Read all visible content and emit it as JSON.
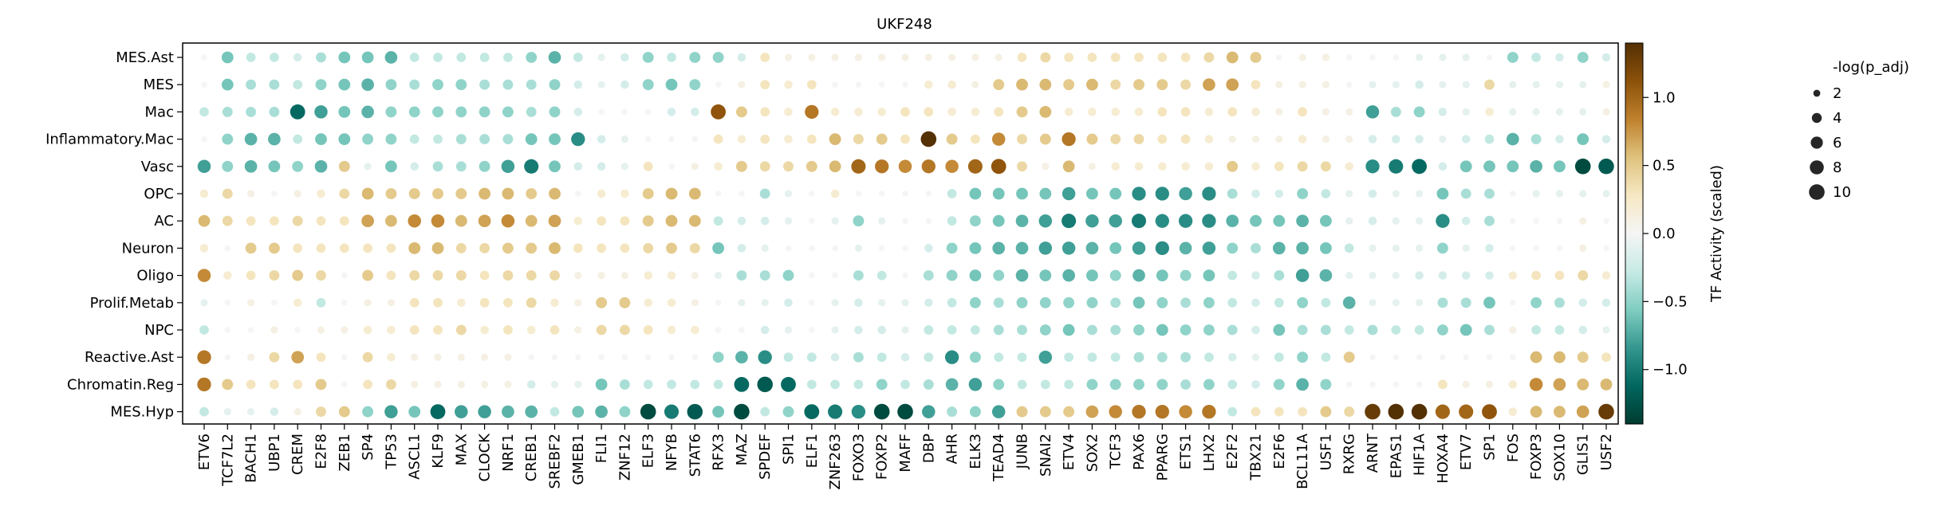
{
  "chart_data": {
    "type": "dotplot",
    "title": "UKF248",
    "xlabel": "",
    "ylabel": "",
    "cell_types": [
      "MES.Ast",
      "MES",
      "Mac",
      "Inflammatory.Mac",
      "Vasc",
      "OPC",
      "AC",
      "Neuron",
      "Oligo",
      "Prolif.Metab",
      "NPC",
      "Reactive.Ast",
      "Chromatin.Reg",
      "MES.Hyp"
    ],
    "tfs": [
      "ETV6",
      "TCF7L2",
      "BACH1",
      "UBP1",
      "CREM",
      "E2F8",
      "ZEB1",
      "SP4",
      "TP53",
      "ASCL1",
      "KLF9",
      "MAX",
      "CLOCK",
      "NRF1",
      "CREB1",
      "SREBF2",
      "GMEB1",
      "FLI1",
      "ZNF12",
      "ELF3",
      "NFYB",
      "STAT6",
      "RFX3",
      "MAZ",
      "SPDEF",
      "SPI1",
      "ELF1",
      "ZNF263",
      "FOXO3",
      "FOXP2",
      "MAFF",
      "DBP",
      "AHR",
      "ELK3",
      "TEAD4",
      "JUNB",
      "SNAI2",
      "ETV4",
      "SOX2",
      "TCF3",
      "PAX6",
      "PPARG",
      "ETS1",
      "LHX2",
      "E2F2",
      "TBX21",
      "E2F6",
      "BCL11A",
      "USF1",
      "RXRG",
      "ARNT",
      "EPAS1",
      "HIF1A",
      "HOXA4",
      "ETV7",
      "SP1",
      "FOS",
      "FOXP3",
      "SOX10",
      "GLIS1",
      "USF2"
    ],
    "activity": [
      [
        0,
        -0.6,
        -0.3,
        -0.3,
        -0.2,
        -0.4,
        -0.6,
        -0.6,
        -0.7,
        -0.3,
        -0.3,
        -0.3,
        -0.3,
        -0.3,
        -0.5,
        -0.7,
        -0.3,
        -0.1,
        -0.2,
        -0.5,
        -0.3,
        -0.5,
        -0.5,
        -0.2,
        0.3,
        0.1,
        0.1,
        0.1,
        0.1,
        0.1,
        0.1,
        0.1,
        0.1,
        0.1,
        0.1,
        0.3,
        0.4,
        0.3,
        0.3,
        0.3,
        0.3,
        0.3,
        0.3,
        0.4,
        0.6,
        0.5,
        0,
        0.1,
        0.1,
        0,
        0,
        0,
        -0.1,
        -0.1,
        -0.1,
        0,
        -0.5,
        -0.3,
        -0.2,
        -0.5,
        -0.2
      ],
      [
        0,
        -0.6,
        -0.4,
        -0.4,
        -0.3,
        -0.5,
        -0.6,
        -0.7,
        -0.5,
        -0.4,
        -0.5,
        -0.5,
        -0.4,
        -0.4,
        -0.4,
        -0.5,
        -0.2,
        -0.1,
        -0.2,
        -0.5,
        -0.6,
        -0.5,
        0,
        0.1,
        0.3,
        0.2,
        0.3,
        0,
        0,
        0,
        0,
        0.2,
        0.2,
        0.1,
        0.5,
        0.6,
        0.6,
        0.5,
        0.6,
        0.4,
        0.5,
        0.5,
        0.4,
        0.7,
        0.7,
        0.3,
        0.1,
        0.1,
        0.1,
        0,
        -0.1,
        -0.1,
        -0.2,
        -0.1,
        -0.1,
        0.4,
        -0.1,
        -0.1,
        -0.1,
        -0.1,
        0.1
      ],
      [
        -0.3,
        -0.4,
        -0.4,
        -0.4,
        -1.1,
        -0.8,
        -0.6,
        -0.7,
        -0.5,
        -0.5,
        -0.5,
        -0.5,
        -0.5,
        -0.5,
        -0.4,
        -0.5,
        -0.2,
        0,
        0,
        0,
        -0.2,
        -0.2,
        1.1,
        0.5,
        0.3,
        0.2,
        0.9,
        0.2,
        0.2,
        0.2,
        0.3,
        0.3,
        0.2,
        0.2,
        0.3,
        0.5,
        0.6,
        0.2,
        0.2,
        0.2,
        0.2,
        0.3,
        0.3,
        0.2,
        0.3,
        0.2,
        0.1,
        0.3,
        0.1,
        0.1,
        -0.8,
        -0.4,
        -0.5,
        -0.2,
        -0.1,
        0.2,
        -0.1,
        -0.1,
        -0.1,
        -0.1,
        0.1
      ],
      [
        0,
        -0.5,
        -0.7,
        -0.7,
        -0.3,
        -0.6,
        -0.6,
        -0.5,
        -0.5,
        -0.3,
        -0.3,
        -0.4,
        -0.4,
        -0.4,
        -0.6,
        -0.6,
        -0.9,
        -0.2,
        -0.1,
        0,
        0,
        0,
        0.3,
        0.2,
        0.3,
        0.2,
        0.3,
        0.6,
        0.4,
        0.5,
        0.3,
        1.4,
        0.5,
        0.3,
        0.8,
        0.4,
        0.5,
        0.9,
        0.5,
        0.4,
        0.4,
        0.3,
        0.3,
        0.2,
        0.1,
        0.1,
        0.1,
        0.2,
        0.1,
        0.1,
        -0.2,
        -0.2,
        -0.2,
        -0.1,
        -0.2,
        -0.3,
        -0.7,
        -0.4,
        -0.2,
        -0.6,
        -0.2
      ],
      [
        -0.8,
        -0.5,
        -0.7,
        -0.6,
        -0.5,
        -0.7,
        0.5,
        -0.1,
        -0.6,
        -0.2,
        -0.4,
        -0.4,
        -0.5,
        -0.8,
        -1.0,
        -0.6,
        -0.2,
        -0.2,
        -0.1,
        0.3,
        0,
        0.1,
        0.2,
        0.5,
        0.4,
        0.4,
        0.5,
        0.6,
        1.0,
        0.9,
        0.8,
        0.9,
        0.8,
        1.0,
        1.1,
        0.4,
        0.1,
        0.6,
        0.1,
        0.2,
        0.2,
        0.2,
        0.2,
        0.2,
        0.5,
        0.2,
        0.3,
        0.4,
        0.4,
        0.2,
        -0.9,
        -1.0,
        -1.1,
        -0.2,
        -0.6,
        -0.6,
        -0.6,
        -0.7,
        -0.6,
        -1.3,
        -1.2
      ],
      [
        0.2,
        0.4,
        0.1,
        0,
        0.1,
        0.2,
        0.4,
        0.6,
        0.5,
        0.5,
        0.5,
        0.5,
        0.6,
        0.6,
        0.5,
        0.6,
        0,
        0.2,
        0.2,
        0.5,
        0.6,
        0.6,
        0,
        0,
        -0.4,
        -0.1,
        0,
        0.2,
        0,
        0,
        0,
        0,
        -0.3,
        -0.6,
        -0.6,
        -0.6,
        -0.6,
        -0.8,
        -0.6,
        -0.6,
        -0.9,
        -0.9,
        -0.8,
        -0.9,
        -0.4,
        -0.2,
        -0.2,
        -0.5,
        -0.3,
        -0.1,
        -0.2,
        -0.1,
        -0.1,
        -0.6,
        -0.4,
        -0.4,
        0,
        -0.1,
        -0.1,
        -0.1,
        -0.1
      ],
      [
        0.6,
        0.4,
        0.3,
        0.3,
        0.4,
        0.3,
        0.3,
        0.7,
        0.6,
        0.8,
        0.8,
        0.6,
        0.7,
        0.8,
        0.6,
        0.7,
        0.2,
        0.3,
        0.3,
        0.5,
        0.6,
        0.6,
        -0.3,
        -0.2,
        -0.2,
        -0.1,
        0,
        -0.1,
        -0.5,
        -0.1,
        0,
        0,
        -0.3,
        -0.5,
        -0.6,
        -0.7,
        -0.8,
        -1.0,
        -0.8,
        -0.8,
        -1.0,
        -0.9,
        -0.9,
        -0.9,
        -0.7,
        -0.6,
        -0.6,
        -0.7,
        -0.6,
        -0.1,
        -0.2,
        -0.1,
        -0.1,
        -0.9,
        -0.2,
        -0.4,
        0,
        0,
        0,
        0.1,
        0
      ],
      [
        0.2,
        0,
        0.5,
        0.5,
        0.3,
        0.3,
        0.3,
        0.3,
        0.3,
        0.6,
        0.6,
        0.4,
        0.4,
        0.5,
        0.5,
        0.6,
        0.3,
        0.3,
        0.3,
        0.4,
        0.5,
        0.4,
        -0.6,
        -0.2,
        -0.1,
        0,
        0,
        0,
        -0.1,
        0,
        0,
        -0.2,
        -0.5,
        -0.6,
        -0.7,
        -0.7,
        -0.8,
        -0.8,
        -0.7,
        -0.6,
        -0.8,
        -0.9,
        -0.7,
        -0.8,
        -0.5,
        -0.4,
        -0.7,
        -0.7,
        -0.6,
        -0.3,
        -0.1,
        -0.1,
        -0.1,
        -0.5,
        -0.1,
        -0.2,
        0,
        0,
        0,
        0.1,
        0
      ],
      [
        0.8,
        0.2,
        0.3,
        0.4,
        0.5,
        0.4,
        0,
        0.5,
        0.3,
        0.4,
        0.4,
        0.4,
        0.3,
        0.4,
        0.4,
        0.4,
        0.1,
        0.1,
        0.1,
        0.2,
        0.2,
        0.1,
        -0.1,
        -0.4,
        -0.4,
        -0.5,
        0,
        0,
        -0.4,
        -0.3,
        0,
        -0.4,
        -0.5,
        -0.6,
        -0.5,
        -0.7,
        -0.6,
        -0.7,
        -0.6,
        -0.5,
        -0.7,
        -0.6,
        -0.5,
        -0.6,
        -0.3,
        -0.2,
        -0.4,
        -0.8,
        -0.7,
        -0.1,
        -0.1,
        -0.1,
        -0.2,
        -0.2,
        -0.2,
        -0.2,
        0.2,
        0.3,
        0.3,
        0.4,
        0.2
      ],
      [
        -0.1,
        0,
        0.1,
        0,
        0.2,
        -0.3,
        0,
        0.1,
        0.1,
        0.3,
        0.3,
        0.2,
        0.3,
        0.3,
        0.4,
        0.2,
        0.1,
        0.5,
        0.5,
        0.2,
        0.2,
        0.1,
        0,
        -0.1,
        -0.1,
        -0.2,
        0,
        -0.1,
        -0.2,
        -0.1,
        -0.1,
        -0.2,
        -0.3,
        -0.5,
        -0.4,
        -0.5,
        -0.5,
        -0.5,
        -0.5,
        -0.4,
        -0.6,
        -0.5,
        -0.4,
        -0.5,
        -0.3,
        -0.2,
        -0.3,
        -0.5,
        -0.3,
        -0.7,
        -0.1,
        -0.1,
        -0.1,
        -0.4,
        -0.4,
        -0.6,
        0,
        -0.5,
        -0.4,
        -0.2,
        -0.2
      ],
      [
        -0.3,
        0,
        0,
        0.1,
        0,
        0.1,
        0.1,
        0.2,
        0.2,
        0.3,
        0.3,
        0.4,
        0.2,
        0.3,
        0.2,
        0.3,
        0.1,
        0.4,
        0.4,
        0.3,
        0.2,
        0.2,
        0,
        0,
        -0.2,
        -0.1,
        0,
        -0.1,
        -0.2,
        -0.2,
        -0.1,
        -0.3,
        -0.3,
        -0.3,
        -0.4,
        -0.4,
        -0.5,
        -0.6,
        -0.4,
        -0.4,
        -0.5,
        -0.6,
        -0.5,
        -0.5,
        -0.4,
        -0.2,
        -0.6,
        -0.4,
        -0.4,
        -0.3,
        -0.4,
        -0.3,
        -0.3,
        -0.5,
        -0.6,
        -0.4,
        0.1,
        -0.3,
        -0.3,
        -0.2,
        -0.1
      ],
      [
        0.9,
        0,
        0.1,
        0.4,
        0.7,
        0.3,
        0,
        0.4,
        0.2,
        0.1,
        0.1,
        0.1,
        0.1,
        0.1,
        0,
        0,
        0,
        0,
        0,
        0,
        0,
        0,
        -0.5,
        -0.7,
        -0.9,
        -0.3,
        -0.3,
        -0.2,
        -0.4,
        -0.3,
        -0.2,
        -0.3,
        -0.9,
        -0.5,
        -0.3,
        -0.3,
        -0.8,
        -0.3,
        -0.3,
        -0.3,
        -0.4,
        -0.4,
        -0.4,
        -0.3,
        -0.2,
        -0.1,
        -0.3,
        -0.5,
        -0.3,
        0.5,
        0,
        0,
        0,
        0,
        0,
        0,
        0,
        0.6,
        0.6,
        0.5,
        0.3
      ],
      [
        0.9,
        0.5,
        0.3,
        0.3,
        0.3,
        0.5,
        0,
        0.3,
        0.4,
        0.1,
        0.1,
        0.1,
        0.1,
        0.1,
        -0.2,
        -0.1,
        -0.1,
        -0.6,
        -0.4,
        -0.3,
        -0.3,
        -0.3,
        -0.3,
        -1.1,
        -1.2,
        -1.1,
        -0.3,
        -0.3,
        -0.3,
        -0.5,
        -0.3,
        -0.4,
        -0.7,
        -0.8,
        -0.5,
        -0.3,
        -0.3,
        -0.3,
        -0.5,
        -0.5,
        -0.5,
        -0.5,
        -0.4,
        -0.5,
        -0.3,
        -0.2,
        -0.5,
        -0.7,
        -0.5,
        0,
        0,
        0,
        0,
        0.3,
        0.1,
        0.1,
        0.2,
        0.8,
        0.7,
        0.6,
        0.6
      ],
      [
        -0.3,
        -0.1,
        -0.1,
        -0.2,
        0.1,
        0.4,
        0.5,
        -0.5,
        -0.8,
        -0.6,
        -1.1,
        -0.8,
        -0.8,
        -0.7,
        -0.7,
        -0.3,
        -0.6,
        -0.7,
        -0.5,
        -1.3,
        -1.0,
        -1.2,
        -0.6,
        -1.3,
        -0.3,
        -0.5,
        -1.1,
        -1.0,
        -0.9,
        -1.3,
        -1.3,
        -0.8,
        -0.4,
        -0.5,
        -0.8,
        0.5,
        0.5,
        0.5,
        0.7,
        0.8,
        0.9,
        0.9,
        0.8,
        0.9,
        -0.3,
        0.3,
        0.3,
        0.3,
        0.5,
        0.4,
        1.3,
        1.4,
        1.4,
        1.0,
        1.0,
        1.1,
        0.2,
        0.6,
        0.6,
        0.7,
        1.3
      ]
    ],
    "size_min_value": 1.5,
    "color_range": [
      -1.4,
      1.4
    ],
    "colorbar_ticks": [
      "1.0",
      "0.5",
      "0.0",
      "−0.5",
      "−1.0"
    ],
    "colorbar_tick_values": [
      1.0,
      0.5,
      0.0,
      -0.5,
      -1.0
    ],
    "colorbar_label": "TF Activity (scaled)",
    "colormap_stops": [
      "#003c30",
      "#01665e",
      "#35978f",
      "#80cdc1",
      "#c7eae5",
      "#f5f5f5",
      "#f6e8c3",
      "#dfc27d",
      "#bf812d",
      "#8c510a",
      "#543005"
    ],
    "size_legend_title": "-log(p_adj)",
    "size_legend_labels": [
      "2",
      "4",
      "6",
      "8",
      "10"
    ],
    "size_legend_values": [
      2,
      4,
      6,
      8,
      10
    ],
    "legend_placement": "right"
  }
}
